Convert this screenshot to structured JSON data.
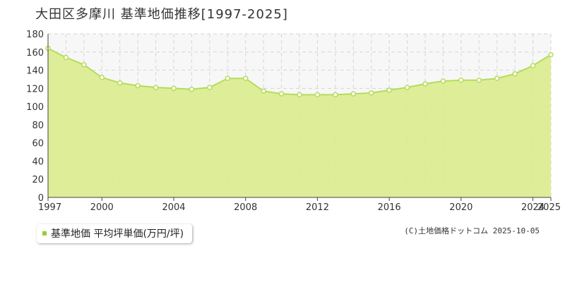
{
  "page": {
    "title": "大田区多摩川 基準地価推移[1997-2025]",
    "copyright": "(C)土地価格ドットコム 2025-10-05"
  },
  "legend": {
    "label": "基準地価 平均坪単価(万円/坪)",
    "swatch_color": "#99cc33"
  },
  "colors": {
    "area_fill": "#dbed8f",
    "line": "#b5dc5a",
    "marker_fill": "#ffffff",
    "marker_stroke": "#b5dc5a",
    "plot_background": "#f7f7f7",
    "grid": "#d6d6d6"
  },
  "chart_data": {
    "type": "area",
    "x": [
      1997,
      1998,
      1999,
      2000,
      2001,
      2002,
      2003,
      2004,
      2005,
      2006,
      2007,
      2008,
      2009,
      2010,
      2011,
      2012,
      2013,
      2014,
      2015,
      2016,
      2017,
      2018,
      2019,
      2020,
      2021,
      2022,
      2023,
      2024,
      2025
    ],
    "series": [
      {
        "values": [
          164,
          154,
          146,
          132,
          126,
          123,
          121,
          120,
          119,
          121,
          131,
          131,
          117,
          114,
          113,
          113,
          113,
          114,
          115,
          118,
          121,
          125,
          128,
          129,
          129,
          131,
          136,
          145,
          157
        ]
      }
    ],
    "xlim": [
      1997,
      2025
    ],
    "ylim": [
      0,
      180
    ],
    "x_ticks": [
      1997,
      2000,
      2004,
      2008,
      2012,
      2016,
      2020,
      2024,
      2025
    ],
    "y_ticks": [
      0,
      20,
      40,
      60,
      80,
      100,
      120,
      140,
      160,
      180
    ],
    "grid": true,
    "legend_position": "bottom-left"
  }
}
